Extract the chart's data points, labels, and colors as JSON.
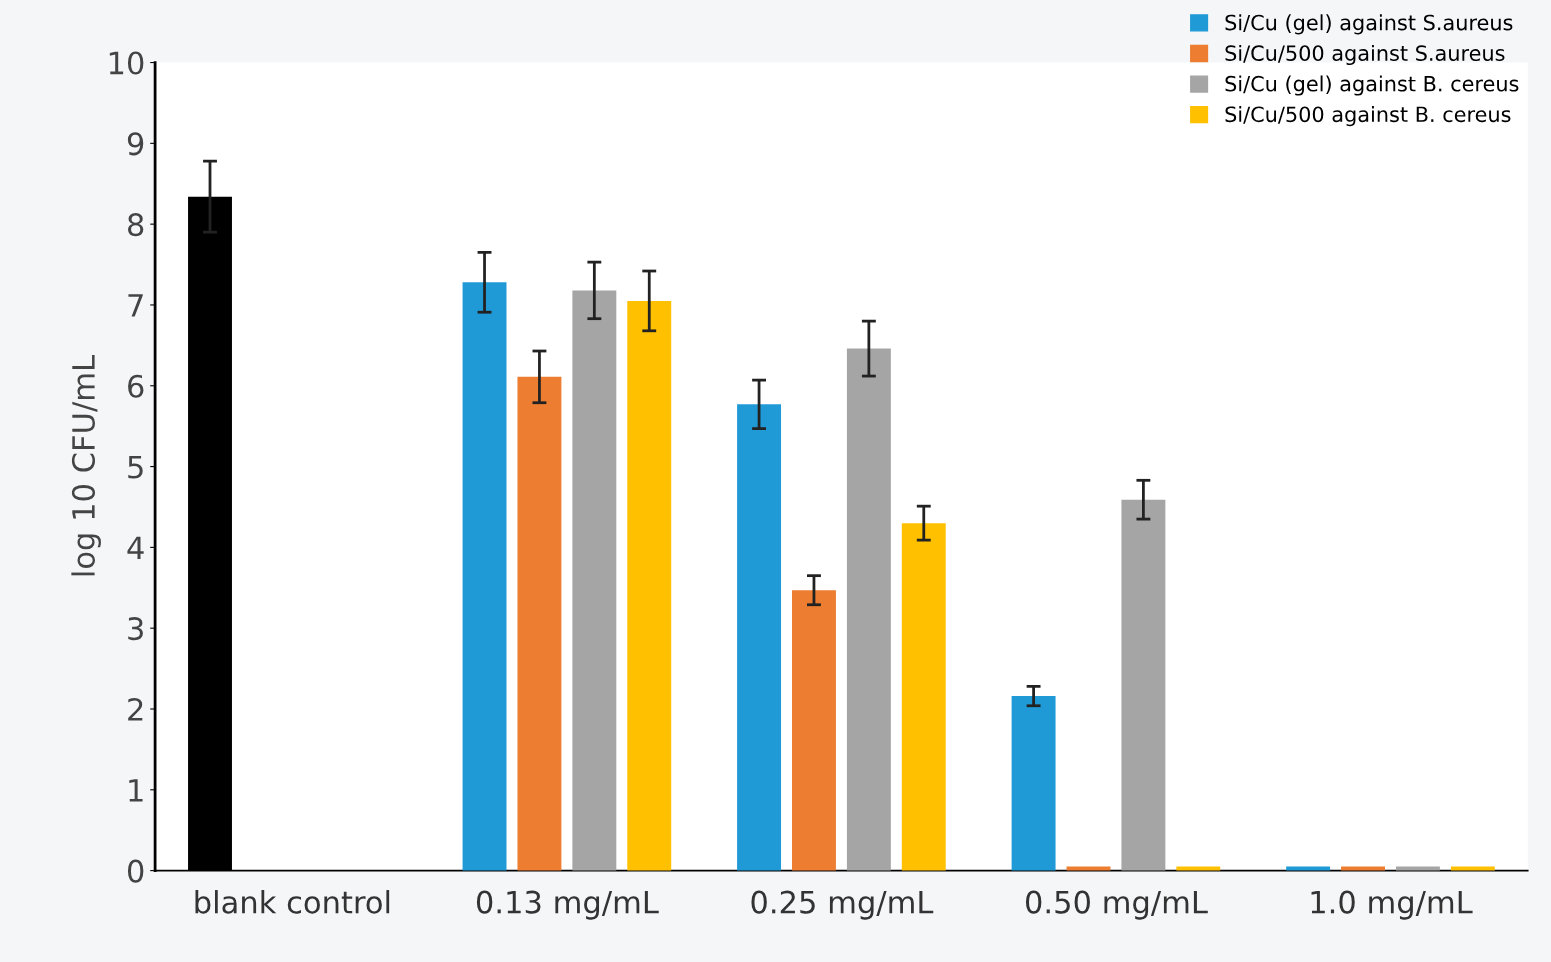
{
  "chart_data": {
    "type": "bar",
    "ylabel": "log 10 CFU/mL",
    "categories": [
      "blank control",
      "0.13 mg/mL",
      "0.25 mg/mL",
      "0.50 mg/mL",
      "1.0 mg/mL"
    ],
    "series": [
      {
        "name": "Si/Cu (gel) against S.aureus",
        "color": "#1f9ad6",
        "colors": [
          "#000000",
          "#1f9ad6",
          "#1f9ad6",
          "#1f9ad6",
          "#1f9ad6"
        ],
        "values": [
          8.34,
          7.28,
          5.77,
          2.16,
          0.05
        ],
        "errors": [
          0.44,
          0.37,
          0.3,
          0.12,
          null
        ]
      },
      {
        "name": "Si/Cu/500 against S.aureus",
        "color": "#ed7d31",
        "values": [
          null,
          6.11,
          3.47,
          0.05,
          0.05
        ],
        "errors": [
          null,
          0.32,
          0.18,
          null,
          null
        ]
      },
      {
        "name": "Si/Cu (gel) against B. cereus",
        "color": "#a5a5a5",
        "values": [
          null,
          7.18,
          6.46,
          4.59,
          0.05
        ],
        "errors": [
          null,
          0.35,
          0.34,
          0.24,
          null
        ]
      },
      {
        "name": "Si/Cu/500 against B. cereus",
        "color": "#ffc000",
        "values": [
          null,
          7.05,
          4.3,
          0.05,
          0.05
        ],
        "errors": [
          null,
          0.37,
          0.21,
          null,
          null
        ]
      }
    ],
    "ylim": [
      0,
      10
    ],
    "yticks": [
      0,
      1,
      2,
      3,
      4,
      5,
      6,
      7,
      8,
      9,
      10
    ],
    "grid": false,
    "legend": "top right"
  }
}
